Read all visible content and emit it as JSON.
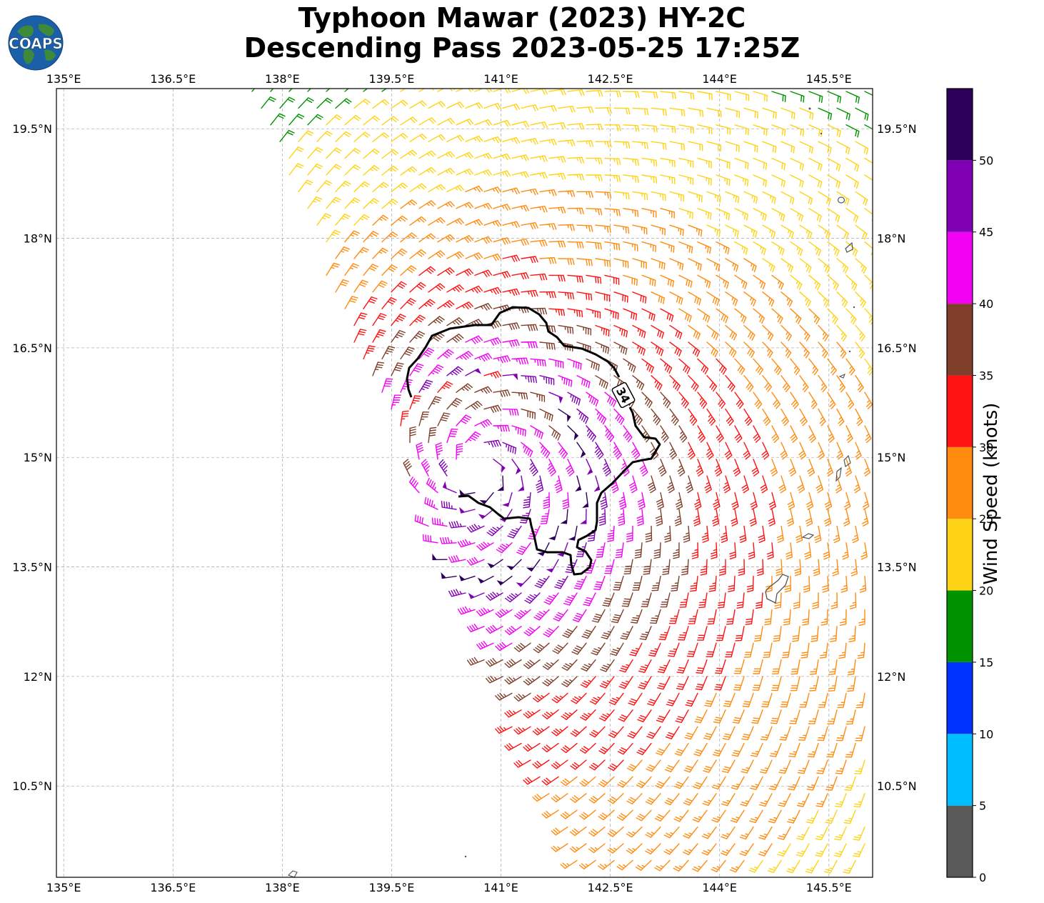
{
  "title": {
    "line1": "Typhoon Mawar (2023) HY-2C",
    "line2": "Descending Pass 2023-05-25 17:25Z"
  },
  "logo": {
    "text": "COAPS",
    "icon": "globe-logo-icon",
    "colors": {
      "ocean": "#1a5fa8",
      "land": "#3c8a3a"
    }
  },
  "map": {
    "lon_range": [
      134.9,
      146.1
    ],
    "lat_range": [
      9.25,
      20.05
    ],
    "lon_ticks": [
      "135°E",
      "136.5°E",
      "138°E",
      "139.5°E",
      "141°E",
      "142.5°E",
      "144°E",
      "145.5°E"
    ],
    "lat_ticks": [
      "10.5°N",
      "12°N",
      "13.5°N",
      "15°N",
      "16.5°N",
      "18°N",
      "19.5°N"
    ],
    "lon_tick_values": [
      135,
      136.5,
      138,
      139.5,
      141,
      142.5,
      144,
      145.5
    ],
    "lat_tick_values": [
      10.5,
      12,
      13.5,
      15,
      16.5,
      18,
      19.5
    ],
    "grid": true,
    "storm_center": {
      "lon": 140.7,
      "lat": 14.85
    },
    "contour_label": "34",
    "contour_kt": 34
  },
  "colorbar": {
    "label": "Wind Speed (knots)",
    "ticks": [
      "0",
      "5",
      "10",
      "15",
      "20",
      "25",
      "30",
      "35",
      "40",
      "45",
      "50"
    ],
    "bins": [
      {
        "min": 0,
        "max": 5,
        "color": "#595959"
      },
      {
        "min": 5,
        "max": 10,
        "color": "#00bfff"
      },
      {
        "min": 10,
        "max": 15,
        "color": "#0033ff"
      },
      {
        "min": 15,
        "max": 20,
        "color": "#009300"
      },
      {
        "min": 20,
        "max": 25,
        "color": "#ffd315"
      },
      {
        "min": 25,
        "max": 30,
        "color": "#ff8c0f"
      },
      {
        "min": 30,
        "max": 35,
        "color": "#ff1212"
      },
      {
        "min": 35,
        "max": 40,
        "color": "#803f2b"
      },
      {
        "min": 40,
        "max": 45,
        "color": "#f202f2"
      },
      {
        "min": 45,
        "max": 50,
        "color": "#8000b3"
      },
      {
        "min": 50,
        "max": 55,
        "color": "#2d005c"
      }
    ]
  }
}
